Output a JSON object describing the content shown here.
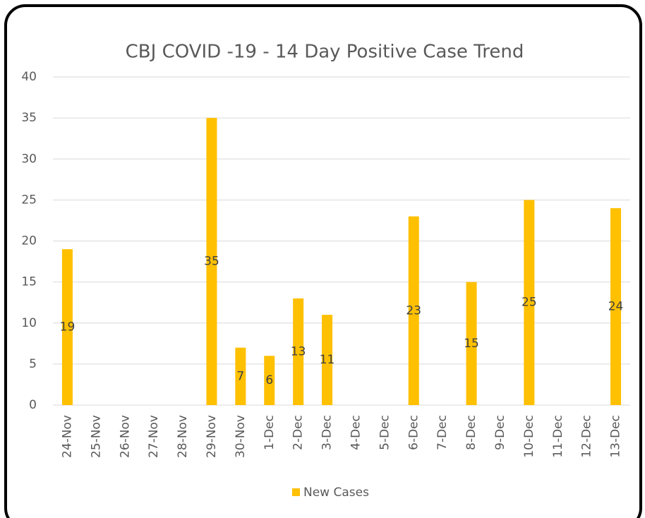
{
  "chart_data": {
    "type": "bar",
    "title": "CBJ COVID -19 - 14 Day Positive Case Trend",
    "categories": [
      "24-Nov",
      "25-Nov",
      "26-Nov",
      "27-Nov",
      "28-Nov",
      "29-Nov",
      "30-Nov",
      "1-Dec",
      "2-Dec",
      "3-Dec",
      "4-Dec",
      "5-Dec",
      "6-Dec",
      "7-Dec",
      "8-Dec",
      "9-Dec",
      "10-Dec",
      "11-Dec",
      "12-Dec",
      "13-Dec"
    ],
    "series": [
      {
        "name": "New Cases",
        "color": "#FFC000",
        "values": [
          19,
          null,
          null,
          null,
          null,
          35,
          7,
          6,
          13,
          11,
          null,
          null,
          23,
          null,
          15,
          null,
          25,
          null,
          null,
          24
        ]
      }
    ],
    "ylim": [
      0,
      40
    ],
    "yticks": [
      0,
      5,
      10,
      15,
      20,
      25,
      30,
      35,
      40
    ],
    "grid": true,
    "legend": "bottom"
  }
}
